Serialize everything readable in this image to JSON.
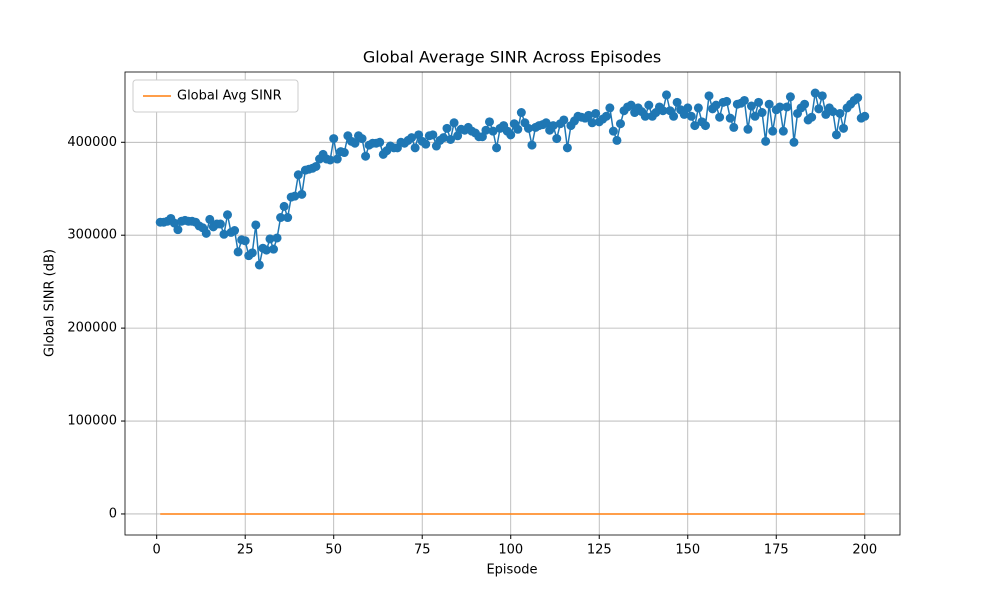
{
  "chart_data": {
    "type": "line",
    "title": "Global Average SINR Across Episodes",
    "xlabel": "Episode",
    "ylabel": "Global SINR (dB)",
    "x": [
      1,
      2,
      3,
      4,
      5,
      6,
      7,
      8,
      9,
      10,
      11,
      12,
      13,
      14,
      15,
      16,
      17,
      18,
      19,
      20,
      21,
      22,
      23,
      24,
      25,
      26,
      27,
      28,
      29,
      30,
      31,
      32,
      33,
      34,
      35,
      36,
      37,
      38,
      39,
      40,
      41,
      42,
      43,
      44,
      45,
      46,
      47,
      48,
      49,
      50,
      51,
      52,
      53,
      54,
      55,
      56,
      57,
      58,
      59,
      60,
      61,
      62,
      63,
      64,
      65,
      66,
      67,
      68,
      69,
      70,
      71,
      72,
      73,
      74,
      75,
      76,
      77,
      78,
      79,
      80,
      81,
      82,
      83,
      84,
      85,
      86,
      87,
      88,
      89,
      90,
      91,
      92,
      93,
      94,
      95,
      96,
      97,
      98,
      99,
      100,
      101,
      102,
      103,
      104,
      105,
      106,
      107,
      108,
      109,
      110,
      111,
      112,
      113,
      114,
      115,
      116,
      117,
      118,
      119,
      120,
      121,
      122,
      123,
      124,
      125,
      126,
      127,
      128,
      129,
      130,
      131,
      132,
      133,
      134,
      135,
      136,
      137,
      138,
      139,
      140,
      141,
      142,
      143,
      144,
      145,
      146,
      147,
      148,
      149,
      150,
      151,
      152,
      153,
      154,
      155,
      156,
      157,
      158,
      159,
      160,
      161,
      162,
      163,
      164,
      165,
      166,
      167,
      168,
      169,
      170,
      171,
      172,
      173,
      174,
      175,
      176,
      177,
      178,
      179,
      180,
      181,
      182,
      183,
      184,
      185,
      186,
      187,
      188,
      189,
      190,
      191,
      192,
      193,
      194,
      195,
      196,
      197,
      198,
      199,
      200
    ],
    "series": [
      {
        "color": "#1f77b4",
        "marker": "o",
        "values": [
          314000,
          314000,
          315000,
          318000,
          313000,
          306000,
          315000,
          316000,
          315000,
          315000,
          314000,
          310000,
          308000,
          302000,
          317000,
          309000,
          312000,
          312000,
          301000,
          322000,
          303000,
          305000,
          282000,
          295000,
          294000,
          278000,
          281000,
          311000,
          268000,
          286000,
          284000,
          296000,
          285000,
          297000,
          319000,
          331000,
          319000,
          341000,
          342000,
          365000,
          344000,
          370000,
          371000,
          372000,
          374000,
          382000,
          387000,
          382000,
          381000,
          404000,
          382000,
          390000,
          389000,
          407000,
          401000,
          399000,
          407000,
          404000,
          385000,
          397000,
          399000,
          399000,
          400000,
          387000,
          391000,
          396000,
          394000,
          394000,
          400000,
          399000,
          402000,
          405000,
          394000,
          408000,
          401000,
          398000,
          407000,
          408000,
          396000,
          402000,
          405000,
          415000,
          403000,
          421000,
          407000,
          414000,
          413000,
          416000,
          412000,
          410000,
          406000,
          406000,
          413000,
          422000,
          412000,
          394000,
          415000,
          418000,
          412000,
          408000,
          420000,
          414000,
          432000,
          421000,
          415000,
          397000,
          416000,
          418000,
          419000,
          421000,
          413000,
          418000,
          404000,
          420000,
          424000,
          394000,
          418000,
          423000,
          428000,
          427000,
          426000,
          429000,
          421000,
          431000,
          422000,
          425000,
          428000,
          437000,
          412000,
          402000,
          420000,
          434000,
          438000,
          440000,
          432000,
          437000,
          433000,
          428000,
          440000,
          428000,
          432000,
          438000,
          434000,
          451000,
          434000,
          428000,
          443000,
          435000,
          430000,
          437000,
          428000,
          418000,
          437000,
          422000,
          418000,
          450000,
          436000,
          440000,
          427000,
          443000,
          444000,
          426000,
          416000,
          441000,
          442000,
          445000,
          414000,
          439000,
          428000,
          443000,
          432000,
          401000,
          441000,
          412000,
          435000,
          438000,
          412000,
          438000,
          449000,
          400000,
          431000,
          437000,
          441000,
          424000,
          427000,
          453000,
          436000,
          450000,
          430000,
          437000,
          433000,
          408000,
          431000,
          415000,
          437000,
          441000,
          445000,
          448000,
          426000,
          428000
        ]
      },
      {
        "name": "Global Avg SINR",
        "color": "#ff7f0e",
        "values": [
          0,
          0,
          0,
          0,
          0,
          0,
          0,
          0,
          0,
          0,
          0,
          0,
          0,
          0,
          0,
          0,
          0,
          0,
          0,
          0,
          0,
          0,
          0,
          0,
          0,
          0,
          0,
          0,
          0,
          0,
          0,
          0,
          0,
          0,
          0,
          0,
          0,
          0,
          0,
          0,
          0,
          0,
          0,
          0,
          0,
          0,
          0,
          0,
          0,
          0,
          0,
          0,
          0,
          0,
          0,
          0,
          0,
          0,
          0,
          0,
          0,
          0,
          0,
          0,
          0,
          0,
          0,
          0,
          0,
          0,
          0,
          0,
          0,
          0,
          0,
          0,
          0,
          0,
          0,
          0,
          0,
          0,
          0,
          0,
          0,
          0,
          0,
          0,
          0,
          0,
          0,
          0,
          0,
          0,
          0,
          0,
          0,
          0,
          0,
          0,
          0,
          0,
          0,
          0,
          0,
          0,
          0,
          0,
          0,
          0,
          0,
          0,
          0,
          0,
          0,
          0,
          0,
          0,
          0,
          0,
          0,
          0,
          0,
          0,
          0,
          0,
          0,
          0,
          0,
          0,
          0,
          0,
          0,
          0,
          0,
          0,
          0,
          0,
          0,
          0,
          0,
          0,
          0,
          0,
          0,
          0,
          0,
          0,
          0,
          0,
          0,
          0,
          0,
          0,
          0,
          0,
          0,
          0,
          0,
          0,
          0,
          0,
          0,
          0,
          0,
          0,
          0,
          0,
          0,
          0,
          0,
          0,
          0,
          0,
          0,
          0,
          0,
          0,
          0,
          0,
          0,
          0,
          0,
          0,
          0,
          0,
          0,
          0,
          0,
          0,
          0,
          0,
          0,
          0,
          0,
          0,
          0,
          0,
          0,
          0
        ]
      }
    ],
    "xlim": [
      -8.95,
      209.95
    ],
    "xticks": [
      0,
      25,
      50,
      75,
      100,
      125,
      150,
      175,
      200
    ],
    "ylim": [
      -22650,
      475650
    ],
    "yticks": [
      0,
      100000,
      200000,
      300000,
      400000
    ],
    "grid": true,
    "legend": "upper-left"
  }
}
